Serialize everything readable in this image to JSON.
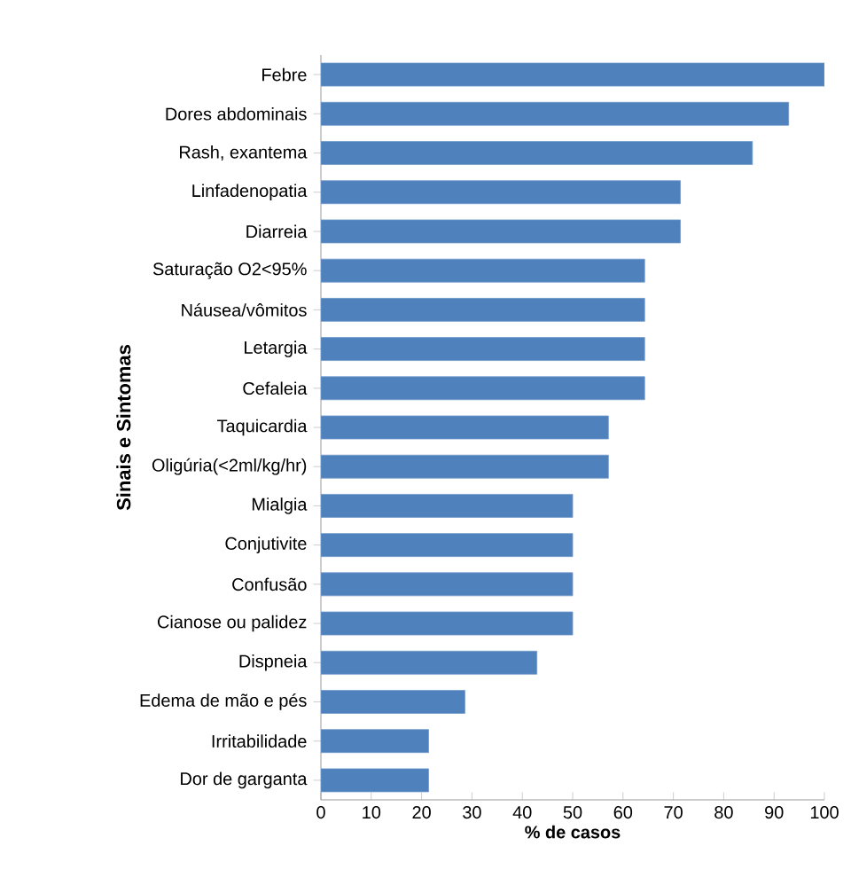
{
  "chart_data": {
    "type": "bar",
    "orientation": "horizontal",
    "xlabel": "% de casos",
    "ylabel": "Sinais e Sintomas",
    "categories": [
      "Febre",
      "Dores abdominais",
      "Rash, exantema",
      "Linfadenopatia",
      "Diarreia",
      "Saturação O2<95%",
      "Náusea/vômitos",
      "Letargia",
      "Cefaleia",
      "Taquicardia",
      "Oligúria(<2ml/kg/hr)",
      "Mialgia",
      "Conjutivite",
      "Confusão",
      "Cianose ou palidez",
      "Dispneia",
      "Edema de mão e pés",
      "Irritabilidade",
      "Dor de garganta"
    ],
    "values": [
      100,
      92.9,
      85.7,
      71.4,
      71.4,
      64.3,
      64.3,
      64.3,
      64.3,
      57.1,
      57.1,
      50,
      50,
      50,
      50,
      42.9,
      28.6,
      21.4,
      21.4
    ],
    "color": "#4f81bd",
    "xlim": [
      0,
      100
    ],
    "xticks": [
      0,
      10,
      20,
      30,
      40,
      50,
      60,
      70,
      80,
      90,
      100
    ],
    "grid": false
  }
}
